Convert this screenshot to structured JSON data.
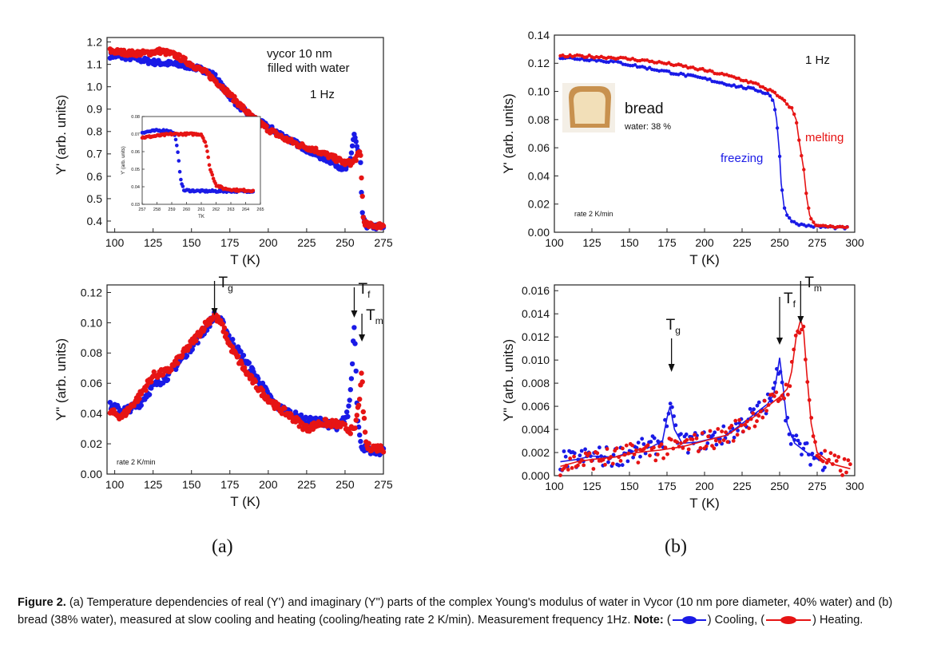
{
  "panels": {
    "a_label": "(a)",
    "b_label": "(b)"
  },
  "caption": {
    "figure_label": "Figure 2.",
    "text_1": "(a) Temperature dependencies of real (Y') and imaginary (Y\") parts of the complex Young's modulus of water in Vycor (10 nm pore diameter, 40% water) and (b) bread (38% water), measured at slow cooling and heating (cooling/heating rate 2 K/min). Measurement frequency 1Hz.",
    "note_label": "Note:",
    "open_paren_1": "(",
    "cooling_text": ") Cooling,",
    "open_paren_2": "(",
    "heating_text": ") Heating."
  },
  "colors": {
    "cooling": "#1a1ae6",
    "heating": "#e61414"
  },
  "chart_data": [
    {
      "id": "a-real",
      "type": "scatter",
      "xlabel": "T (K)",
      "ylabel": "Y' (arb. units)",
      "xlim": [
        95,
        275
      ],
      "ylim": [
        0.35,
        1.22
      ],
      "xticks": [
        100,
        125,
        150,
        175,
        200,
        225,
        250,
        275
      ],
      "yticks": [
        0.4,
        0.5,
        0.6,
        0.7,
        0.8,
        0.9,
        1.0,
        1.1,
        1.2
      ],
      "ytick_labels": [
        "0.4",
        "0.5",
        "0.6",
        "0.7",
        "0.8",
        "0.9",
        "1.0",
        "1.1",
        "1.2"
      ],
      "annotations": [
        "vycor 10 nm",
        "filled with water",
        "1 Hz"
      ],
      "series": [
        {
          "key": "cooling",
          "points": [
            [
              97,
              1.14
            ],
            [
              110,
              1.13
            ],
            [
              125,
              1.11
            ],
            [
              140,
              1.1
            ],
            [
              150,
              1.09
            ],
            [
              160,
              1.07
            ],
            [
              165,
              1.05
            ],
            [
              172,
              0.98
            ],
            [
              180,
              0.92
            ],
            [
              190,
              0.86
            ],
            [
              200,
              0.82
            ],
            [
              210,
              0.78
            ],
            [
              220,
              0.74
            ],
            [
              230,
              0.7
            ],
            [
              240,
              0.67
            ],
            [
              250,
              0.63
            ],
            [
              253,
              0.65
            ],
            [
              255,
              0.75
            ],
            [
              256,
              0.79
            ],
            [
              258,
              0.72
            ],
            [
              260,
              0.68
            ],
            [
              261,
              0.45
            ],
            [
              263,
              0.38
            ],
            [
              275,
              0.37
            ]
          ]
        },
        {
          "key": "heating",
          "points": [
            [
              97,
              1.16
            ],
            [
              110,
              1.15
            ],
            [
              120,
              1.15
            ],
            [
              130,
              1.16
            ],
            [
              140,
              1.14
            ],
            [
              150,
              1.1
            ],
            [
              160,
              1.06
            ],
            [
              170,
              1.0
            ],
            [
              180,
              0.93
            ],
            [
              190,
              0.86
            ],
            [
              200,
              0.81
            ],
            [
              210,
              0.77
            ],
            [
              220,
              0.74
            ],
            [
              230,
              0.72
            ],
            [
              240,
              0.69
            ],
            [
              250,
              0.66
            ],
            [
              255,
              0.66
            ],
            [
              258,
              0.69
            ],
            [
              260,
              0.71
            ],
            [
              262,
              0.4
            ],
            [
              265,
              0.38
            ],
            [
              275,
              0.38
            ]
          ]
        }
      ],
      "inset": {
        "xlabel": "TK",
        "ylabel": "Y' (arb. units)",
        "xlim": [
          257,
          265
        ],
        "ylim": [
          0.03,
          0.08
        ],
        "xticks": [
          257,
          258,
          259,
          260,
          261,
          262,
          263,
          264,
          265
        ],
        "yticks": [
          0.03,
          0.04,
          0.05,
          0.06,
          0.07,
          0.08
        ],
        "ytick_labels": [
          "0.03",
          "0.04",
          "0.05",
          "0.06",
          "0.07",
          "0.08"
        ],
        "series": [
          {
            "key": "cooling",
            "points": [
              [
                257,
                0.071
              ],
              [
                258,
                0.072
              ],
              [
                258.8,
                0.072
              ],
              [
                259.2,
                0.07
              ],
              [
                259.4,
                0.06
              ],
              [
                259.6,
                0.045
              ],
              [
                259.8,
                0.038
              ],
              [
                261,
                0.0375
              ],
              [
                263,
                0.0375
              ],
              [
                264.5,
                0.0375
              ]
            ]
          },
          {
            "key": "heating",
            "points": [
              [
                257,
                0.068
              ],
              [
                258,
                0.069
              ],
              [
                259,
                0.07
              ],
              [
                260,
                0.07
              ],
              [
                261,
                0.07
              ],
              [
                261.3,
                0.065
              ],
              [
                261.6,
                0.05
              ],
              [
                262,
                0.041
              ],
              [
                262.5,
                0.039
              ],
              [
                263.5,
                0.038
              ],
              [
                264.5,
                0.0378
              ]
            ]
          }
        ]
      }
    },
    {
      "id": "a-imag",
      "type": "scatter",
      "xlabel": "T (K)",
      "ylabel": "Y\" (arb. units)",
      "xlim": [
        95,
        275
      ],
      "ylim": [
        0.0,
        0.125
      ],
      "xticks": [
        100,
        125,
        150,
        175,
        200,
        225,
        250,
        275
      ],
      "yticks": [
        0.0,
        0.02,
        0.04,
        0.06,
        0.08,
        0.1,
        0.12
      ],
      "ytick_labels": [
        "0.00",
        "0.02",
        "0.04",
        "0.06",
        "0.08",
        "0.10",
        "0.12"
      ],
      "annotations": [
        "rate 2 K/min"
      ],
      "markers": [
        {
          "label": "T",
          "sub": "g",
          "x": 165
        },
        {
          "label": "T",
          "sub": "f",
          "x": 256
        },
        {
          "label": "T",
          "sub": "m",
          "x": 261
        }
      ],
      "series": [
        {
          "key": "cooling",
          "points": [
            [
              97,
              0.045
            ],
            [
              105,
              0.042
            ],
            [
              115,
              0.045
            ],
            [
              125,
              0.058
            ],
            [
              135,
              0.065
            ],
            [
              145,
              0.078
            ],
            [
              155,
              0.09
            ],
            [
              160,
              0.097
            ],
            [
              165,
              0.105
            ],
            [
              170,
              0.1
            ],
            [
              175,
              0.09
            ],
            [
              185,
              0.075
            ],
            [
              195,
              0.06
            ],
            [
              205,
              0.045
            ],
            [
              215,
              0.04
            ],
            [
              225,
              0.035
            ],
            [
              235,
              0.035
            ],
            [
              245,
              0.03
            ],
            [
              252,
              0.04
            ],
            [
              254,
              0.06
            ],
            [
              255,
              0.08
            ],
            [
              256,
              0.1
            ],
            [
              257,
              0.075
            ],
            [
              258,
              0.04
            ],
            [
              260,
              0.02
            ],
            [
              265,
              0.015
            ],
            [
              275,
              0.015
            ]
          ]
        },
        {
          "key": "heating",
          "points": [
            [
              97,
              0.041
            ],
            [
              105,
              0.038
            ],
            [
              115,
              0.05
            ],
            [
              125,
              0.065
            ],
            [
              135,
              0.068
            ],
            [
              145,
              0.08
            ],
            [
              155,
              0.093
            ],
            [
              160,
              0.1
            ],
            [
              165,
              0.105
            ],
            [
              170,
              0.098
            ],
            [
              175,
              0.085
            ],
            [
              185,
              0.068
            ],
            [
              195,
              0.055
            ],
            [
              205,
              0.045
            ],
            [
              215,
              0.038
            ],
            [
              225,
              0.03
            ],
            [
              235,
              0.034
            ],
            [
              245,
              0.033
            ],
            [
              252,
              0.03
            ],
            [
              256,
              0.028
            ],
            [
              258,
              0.04
            ],
            [
              260,
              0.055
            ],
            [
              261,
              0.068
            ],
            [
              262,
              0.04
            ],
            [
              264,
              0.018
            ],
            [
              275,
              0.017
            ]
          ]
        }
      ]
    },
    {
      "id": "b-real",
      "type": "scatter",
      "xlabel": "T (K)",
      "ylabel": "Y' (arb. units)",
      "xlim": [
        100,
        300
      ],
      "ylim": [
        0.0,
        0.14
      ],
      "xticks": [
        100,
        125,
        150,
        175,
        200,
        225,
        250,
        275,
        300
      ],
      "yticks": [
        0.0,
        0.02,
        0.04,
        0.06,
        0.08,
        0.1,
        0.12,
        0.14
      ],
      "ytick_labels": [
        "0.00",
        "0.02",
        "0.04",
        "0.06",
        "0.08",
        "0.10",
        "0.12",
        "0.14"
      ],
      "annotations": [
        "1 Hz",
        "bread",
        "water: 38 %",
        "freezing",
        "melting",
        "rate 2 K/min"
      ],
      "series": [
        {
          "key": "cooling",
          "points": [
            [
              104,
              0.124
            ],
            [
              120,
              0.123
            ],
            [
              140,
              0.121
            ],
            [
              160,
              0.117
            ],
            [
              180,
              0.113
            ],
            [
              200,
              0.109
            ],
            [
              220,
              0.104
            ],
            [
              235,
              0.101
            ],
            [
              243,
              0.098
            ],
            [
              246,
              0.093
            ],
            [
              248,
              0.08
            ],
            [
              250,
              0.055
            ],
            [
              251,
              0.035
            ],
            [
              253,
              0.018
            ],
            [
              256,
              0.01
            ],
            [
              260,
              0.007
            ],
            [
              265,
              0.005
            ],
            [
              275,
              0.004
            ],
            [
              295,
              0.003
            ]
          ]
        },
        {
          "key": "heating",
          "points": [
            [
              104,
              0.125
            ],
            [
              120,
              0.125
            ],
            [
              140,
              0.124
            ],
            [
              160,
              0.122
            ],
            [
              180,
              0.119
            ],
            [
              200,
              0.115
            ],
            [
              220,
              0.11
            ],
            [
              235,
              0.105
            ],
            [
              245,
              0.1
            ],
            [
              252,
              0.094
            ],
            [
              258,
              0.088
            ],
            [
              261,
              0.08
            ],
            [
              263,
              0.065
            ],
            [
              266,
              0.045
            ],
            [
              268,
              0.025
            ],
            [
              270,
              0.012
            ],
            [
              273,
              0.006
            ],
            [
              280,
              0.004
            ],
            [
              295,
              0.003
            ]
          ]
        }
      ]
    },
    {
      "id": "b-imag",
      "type": "scatter",
      "xlabel": "T (K)",
      "ylabel": "Y\" (arb. units)",
      "xlim": [
        100,
        300
      ],
      "ylim": [
        0.0,
        0.0165
      ],
      "xticks": [
        100,
        125,
        150,
        175,
        200,
        225,
        250,
        275,
        300
      ],
      "yticks": [
        0.0,
        0.002,
        0.004,
        0.006,
        0.008,
        0.01,
        0.012,
        0.014,
        0.016
      ],
      "ytick_labels": [
        "0.000",
        "0.002",
        "0.004",
        "0.006",
        "0.008",
        "0.010",
        "0.012",
        "0.014",
        "0.016"
      ],
      "markers": [
        {
          "label": "T",
          "sub": "g",
          "x": 178
        },
        {
          "label": "T",
          "sub": "f",
          "x": 250
        },
        {
          "label": "T",
          "sub": "m",
          "x": 264
        }
      ],
      "series": [
        {
          "key": "cooling",
          "points": [
            [
              104,
              0.0012
            ],
            [
              115,
              0.0014
            ],
            [
              125,
              0.0017
            ],
            [
              140,
              0.0016
            ],
            [
              155,
              0.0022
            ],
            [
              165,
              0.0025
            ],
            [
              172,
              0.003
            ],
            [
              175,
              0.005
            ],
            [
              177,
              0.006
            ],
            [
              180,
              0.004
            ],
            [
              185,
              0.0028
            ],
            [
              195,
              0.0029
            ],
            [
              205,
              0.0032
            ],
            [
              215,
              0.0035
            ],
            [
              225,
              0.0045
            ],
            [
              235,
              0.0055
            ],
            [
              242,
              0.0062
            ],
            [
              246,
              0.007
            ],
            [
              248,
              0.0085
            ],
            [
              250,
              0.0102
            ],
            [
              252,
              0.008
            ],
            [
              255,
              0.0045
            ],
            [
              260,
              0.0028
            ],
            [
              270,
              0.0018
            ],
            [
              280,
              0.0013
            ]
          ]
        },
        {
          "key": "heating",
          "points": [
            [
              104,
              0.0008
            ],
            [
              115,
              0.0012
            ],
            [
              125,
              0.0014
            ],
            [
              140,
              0.0016
            ],
            [
              155,
              0.002
            ],
            [
              170,
              0.0022
            ],
            [
              185,
              0.0025
            ],
            [
              200,
              0.003
            ],
            [
              215,
              0.0035
            ],
            [
              230,
              0.0048
            ],
            [
              240,
              0.0058
            ],
            [
              250,
              0.0068
            ],
            [
              255,
              0.0075
            ],
            [
              258,
              0.009
            ],
            [
              261,
              0.012
            ],
            [
              264,
              0.0135
            ],
            [
              266,
              0.0125
            ],
            [
              268,
              0.009
            ],
            [
              271,
              0.0045
            ],
            [
              275,
              0.002
            ],
            [
              285,
              0.001
            ],
            [
              297,
              0.0006
            ]
          ]
        }
      ]
    }
  ]
}
